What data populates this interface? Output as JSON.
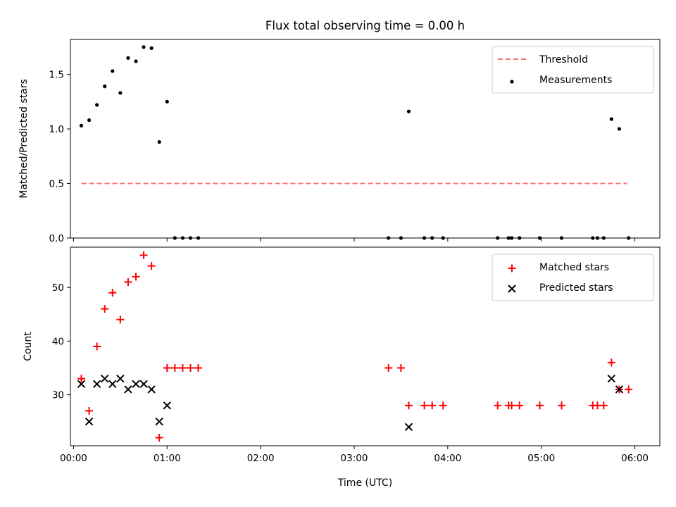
{
  "chart_data": {
    "title": "Flux total observing time = 0.00 h",
    "xlabel": "Time (UTC)",
    "x_ticks": [
      "00:00",
      "01:00",
      "02:00",
      "03:00",
      "04:00",
      "05:00",
      "06:00"
    ],
    "xlim": [
      "-00:02",
      "06:16"
    ],
    "panels": [
      {
        "type": "scatter",
        "ylabel": "Matched/Predicted stars",
        "ylim": [
          0,
          1.82
        ],
        "y_ticks": [
          "0.0",
          "0.5",
          "1.0",
          "1.5"
        ],
        "legend_position": "upper right",
        "legend": [
          "Threshold",
          "Measurements"
        ],
        "series": [
          {
            "name": "Threshold",
            "style": "dashed-line",
            "color": "#ff7070",
            "x": [
              "00:05",
              "05:55"
            ],
            "y": [
              0.5,
              0.5
            ]
          },
          {
            "name": "Measurements",
            "style": "dot",
            "color": "#000000",
            "x": [
              "00:05",
              "00:10",
              "00:15",
              "00:20",
              "00:25",
              "00:30",
              "00:35",
              "00:40",
              "00:45",
              "00:50",
              "00:55",
              "01:00",
              "01:05",
              "01:10",
              "01:15",
              "01:20",
              "03:22",
              "03:30",
              "03:35",
              "03:45",
              "03:50",
              "03:57",
              "04:32",
              "04:39",
              "04:41",
              "04:46",
              "04:59",
              "05:13",
              "05:33",
              "05:36",
              "05:40",
              "05:45",
              "05:50",
              "05:56"
            ],
            "y": [
              1.03,
              1.08,
              1.22,
              1.39,
              1.53,
              1.33,
              1.65,
              1.62,
              1.75,
              1.74,
              0.88,
              1.25,
              0,
              0,
              0,
              0,
              0,
              0,
              1.16,
              0,
              0,
              0,
              0,
              0,
              0,
              0,
              0,
              0,
              0,
              0,
              0,
              1.09,
              1.0,
              0
            ]
          }
        ]
      },
      {
        "type": "scatter",
        "ylabel": "Count",
        "ylim": [
          20.5,
          57.5
        ],
        "y_ticks": [
          "30",
          "40",
          "50"
        ],
        "legend_position": "upper right",
        "legend": [
          "Matched stars",
          "Predicted stars"
        ],
        "series": [
          {
            "name": "Matched stars",
            "marker": "plus",
            "color": "#ff0000",
            "x": [
              "00:05",
              "00:10",
              "00:15",
              "00:20",
              "00:25",
              "00:30",
              "00:35",
              "00:40",
              "00:45",
              "00:50",
              "00:55",
              "01:00",
              "01:05",
              "01:10",
              "01:15",
              "01:20",
              "03:22",
              "03:30",
              "03:35",
              "03:45",
              "03:50",
              "03:57",
              "04:32",
              "04:39",
              "04:41",
              "04:46",
              "04:59",
              "05:13",
              "05:33",
              "05:36",
              "05:40",
              "05:45",
              "05:50",
              "05:56"
            ],
            "y": [
              33,
              27,
              39,
              46,
              49,
              44,
              51,
              52,
              56,
              54,
              22,
              35,
              35,
              35,
              35,
              35,
              35,
              35,
              28,
              28,
              28,
              28,
              28,
              28,
              28,
              28,
              28,
              28,
              28,
              28,
              28,
              36,
              31,
              31
            ]
          },
          {
            "name": "Predicted stars",
            "marker": "x",
            "color": "#000000",
            "x": [
              "00:05",
              "00:10",
              "00:15",
              "00:20",
              "00:25",
              "00:30",
              "00:35",
              "00:40",
              "00:45",
              "00:50",
              "00:55",
              "01:00",
              "03:35",
              "05:45",
              "05:50"
            ],
            "y": [
              32,
              25,
              32,
              33,
              32,
              33,
              31,
              32,
              32,
              31,
              25,
              28,
              24,
              33,
              31
            ]
          }
        ]
      }
    ]
  }
}
